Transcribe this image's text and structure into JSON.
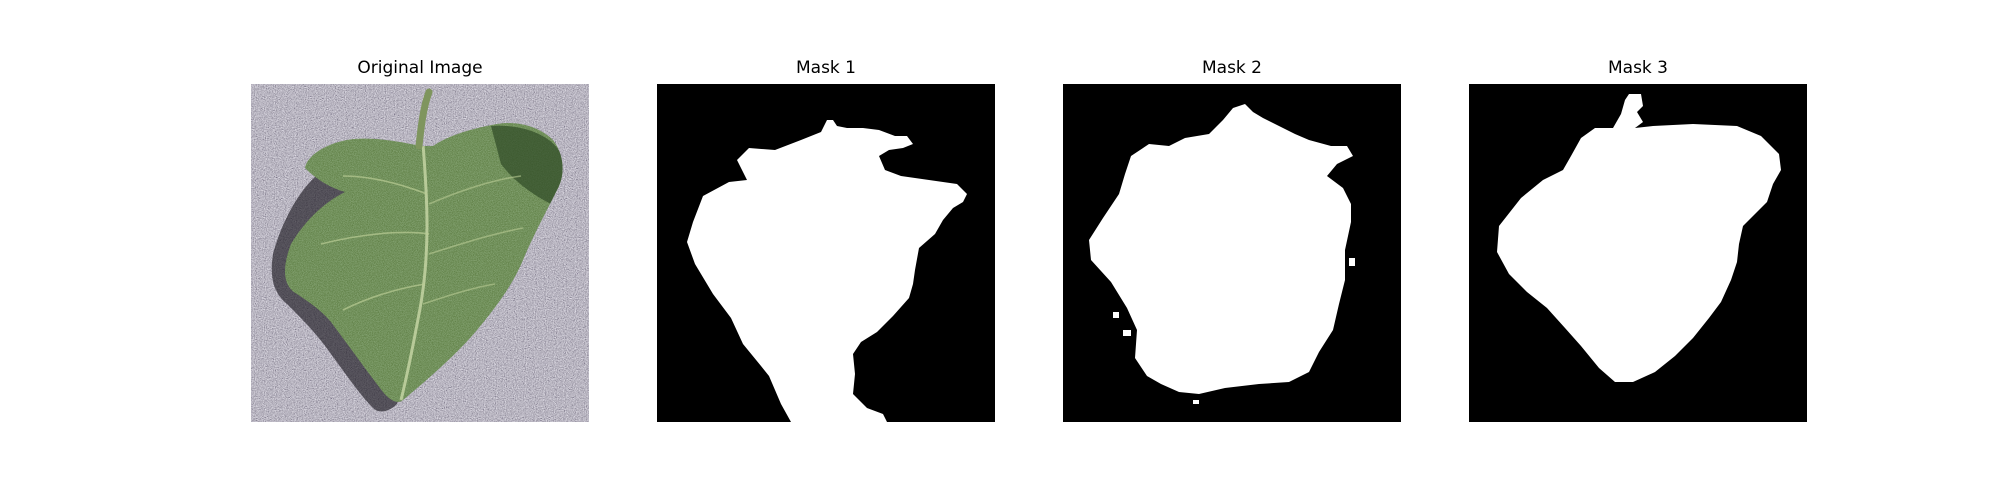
{
  "figure": {
    "panels": [
      {
        "title": "Original Image",
        "content": "leaf-photo"
      },
      {
        "title": "Mask 1",
        "content": "binary-mask"
      },
      {
        "title": "Mask 2",
        "content": "binary-mask"
      },
      {
        "title": "Mask 3",
        "content": "binary-mask"
      }
    ]
  },
  "colors": {
    "mask_background": "#000000",
    "mask_foreground": "#ffffff",
    "leaf_green": "#5f7f45",
    "ground_gray": "#8a8694"
  }
}
